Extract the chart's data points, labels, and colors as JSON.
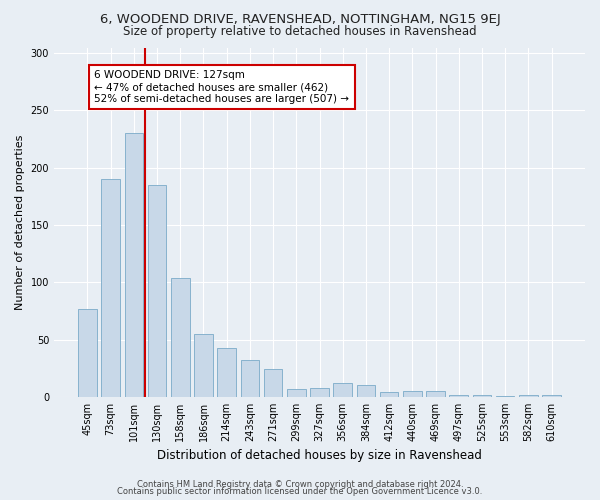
{
  "title_line1": "6, WOODEND DRIVE, RAVENSHEAD, NOTTINGHAM, NG15 9EJ",
  "title_line2": "Size of property relative to detached houses in Ravenshead",
  "xlabel": "Distribution of detached houses by size in Ravenshead",
  "ylabel": "Number of detached properties",
  "categories": [
    "45sqm",
    "73sqm",
    "101sqm",
    "130sqm",
    "158sqm",
    "186sqm",
    "214sqm",
    "243sqm",
    "271sqm",
    "299sqm",
    "327sqm",
    "356sqm",
    "384sqm",
    "412sqm",
    "440sqm",
    "469sqm",
    "497sqm",
    "525sqm",
    "553sqm",
    "582sqm",
    "610sqm"
  ],
  "values": [
    77,
    190,
    230,
    185,
    104,
    55,
    43,
    32,
    24,
    7,
    8,
    12,
    10,
    4,
    5,
    5,
    2,
    2,
    1,
    2,
    2
  ],
  "bar_color": "#c8d8e8",
  "bar_edgecolor": "#7aaac8",
  "vline_x_index": 2,
  "vline_color": "#cc0000",
  "annotation_text": "6 WOODEND DRIVE: 127sqm\n← 47% of detached houses are smaller (462)\n52% of semi-detached houses are larger (507) →",
  "annotation_box_edgecolor": "#cc0000",
  "annotation_box_facecolor": "#ffffff",
  "ylim": [
    0,
    305
  ],
  "yticks": [
    0,
    50,
    100,
    150,
    200,
    250,
    300
  ],
  "background_color": "#e8eef4",
  "grid_color": "#ffffff",
  "footer_line1": "Contains HM Land Registry data © Crown copyright and database right 2024.",
  "footer_line2": "Contains public sector information licensed under the Open Government Licence v3.0.",
  "title_fontsize": 9.5,
  "subtitle_fontsize": 8.5,
  "xlabel_fontsize": 8.5,
  "ylabel_fontsize": 8,
  "tick_fontsize": 7,
  "annotation_fontsize": 7.5,
  "footer_fontsize": 6
}
